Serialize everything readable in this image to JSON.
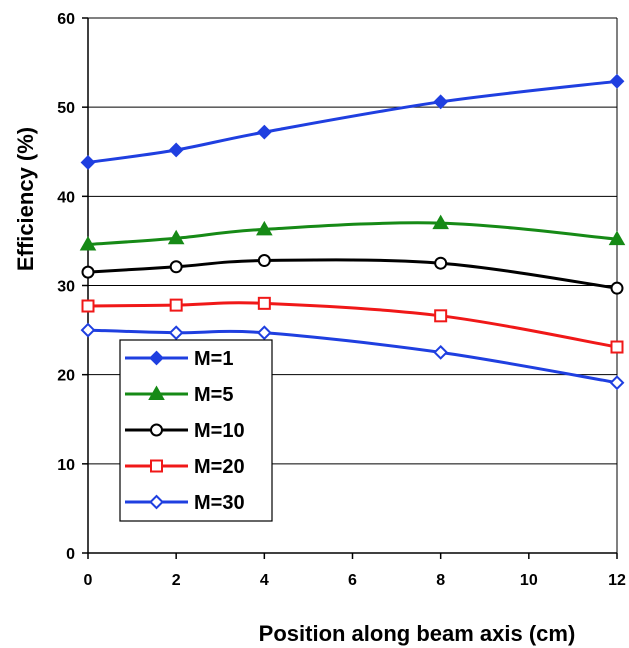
{
  "chart_data": {
    "type": "line",
    "title": "",
    "xlabel": "Position along beam axis (cm)",
    "ylabel": "Efficiency (%)",
    "xlim": [
      0,
      12
    ],
    "ylim": [
      0,
      60
    ],
    "x_ticks": [
      0,
      2,
      4,
      6,
      8,
      10,
      12
    ],
    "y_ticks": [
      0,
      10,
      20,
      30,
      40,
      50,
      60
    ],
    "x_tick_labels": [
      "0",
      "2",
      "4",
      "6",
      "8",
      "10",
      "12"
    ],
    "y_tick_labels": [
      "0",
      "10",
      "20",
      "30",
      "40",
      "50",
      "60"
    ],
    "grid": "horizontal",
    "legend_position": "bottom-left",
    "x": [
      0,
      2,
      4,
      8,
      12
    ],
    "series": [
      {
        "name": "M=1",
        "values": [
          43.8,
          45.2,
          47.2,
          50.6,
          52.9
        ],
        "color": "#1f3fe0",
        "marker": "diamond-filled"
      },
      {
        "name": "M=5",
        "values": [
          34.6,
          35.3,
          36.3,
          37.0,
          35.2
        ],
        "color": "#168a16",
        "marker": "triangle-filled"
      },
      {
        "name": "M=10",
        "values": [
          31.5,
          32.1,
          32.8,
          32.5,
          29.7
        ],
        "color": "#000000",
        "marker": "circle-open"
      },
      {
        "name": "M=20",
        "values": [
          27.7,
          27.8,
          28.0,
          26.6,
          23.1
        ],
        "color": "#f01818",
        "marker": "square-open"
      },
      {
        "name": "M=30",
        "values": [
          25.0,
          24.7,
          24.7,
          22.5,
          19.1
        ],
        "color": "#1f3fe0",
        "marker": "diamond-open"
      }
    ]
  }
}
